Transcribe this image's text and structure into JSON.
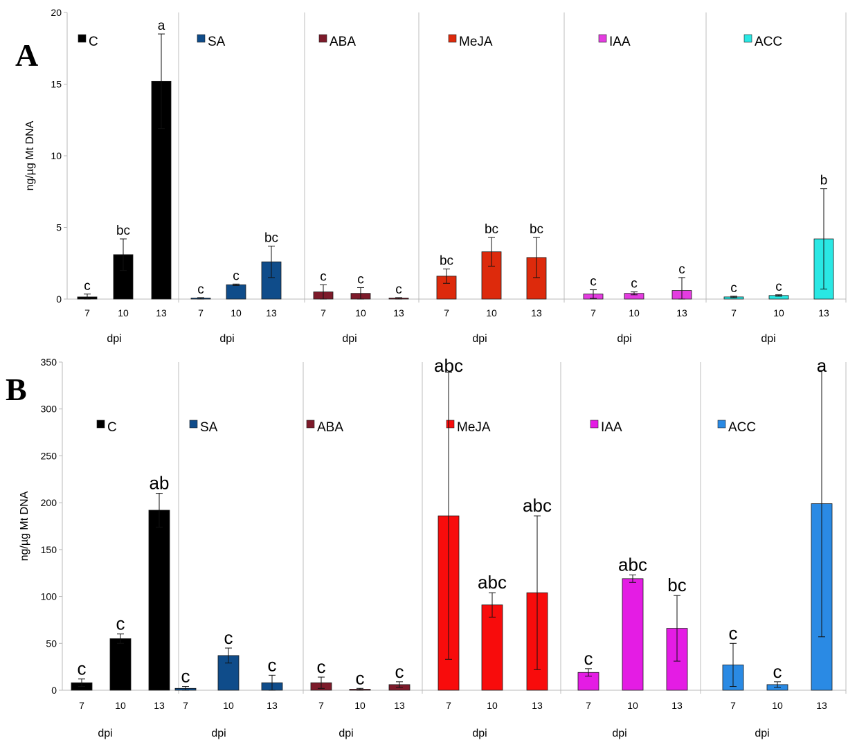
{
  "panels": [
    {
      "letter": "A",
      "ylabel": "ng/µg Mt DNA",
      "xlabel": "dpi",
      "ylim": [
        0,
        20
      ],
      "yticks": [
        "0",
        "5",
        "10",
        "15",
        "20"
      ],
      "categories": [
        "7",
        "10",
        "13"
      ],
      "subplots": [
        {
          "name": "C",
          "color": "#000000",
          "values": [
            0.15,
            3.1,
            15.2
          ],
          "errors": [
            0.2,
            1.1,
            3.3
          ],
          "labels": [
            "c",
            "bc",
            "a"
          ]
        },
        {
          "name": "SA",
          "color": "#0f4c8a",
          "values": [
            0.05,
            1.0,
            2.6
          ],
          "errors": [
            0.05,
            0.05,
            1.1
          ],
          "labels": [
            "c",
            "c",
            "bc"
          ]
        },
        {
          "name": "ABA",
          "color": "#7d1a2a",
          "values": [
            0.5,
            0.4,
            0.05
          ],
          "errors": [
            0.5,
            0.4,
            0.05
          ],
          "labels": [
            "c",
            "c",
            "c"
          ]
        },
        {
          "name": "MeJA",
          "color": "#dd2a0c",
          "values": [
            1.6,
            3.3,
            2.9
          ],
          "errors": [
            0.5,
            1.0,
            1.4
          ],
          "labels": [
            "bc",
            "bc",
            "bc"
          ]
        },
        {
          "name": "IAA",
          "color": "#e43ce0",
          "values": [
            0.35,
            0.4,
            0.6
          ],
          "errors": [
            0.3,
            0.1,
            0.9
          ],
          "labels": [
            "c",
            "c",
            "c"
          ]
        },
        {
          "name": "ACC",
          "color": "#2ae8e4",
          "values": [
            0.15,
            0.25,
            4.2
          ],
          "errors": [
            0.05,
            0.05,
            3.5
          ],
          "labels": [
            "c",
            "c",
            "b"
          ]
        }
      ]
    },
    {
      "letter": "B",
      "ylabel": "ng/µg Mt DNA",
      "xlabel": "dpi",
      "ylim": [
        0,
        350
      ],
      "yticks": [
        "0",
        "50",
        "100",
        "150",
        "200",
        "250",
        "300",
        "350"
      ],
      "categories": [
        "7",
        "10",
        "13"
      ],
      "subplots": [
        {
          "name": "C",
          "color": "#000000",
          "values": [
            8,
            55,
            192
          ],
          "errors": [
            4,
            5,
            18
          ],
          "labels": [
            "c",
            "c",
            "ab"
          ]
        },
        {
          "name": "SA",
          "color": "#0f4c8a",
          "values": [
            2,
            37,
            8
          ],
          "errors": [
            2,
            8,
            8
          ],
          "labels": [
            "c",
            "c",
            "c"
          ]
        },
        {
          "name": "ABA",
          "color": "#7d1a2a",
          "values": [
            8,
            1,
            6
          ],
          "errors": [
            6,
            1,
            3
          ],
          "labels": [
            "c",
            "c",
            "c"
          ]
        },
        {
          "name": "MeJA",
          "color": "#f80c0c",
          "values": [
            186,
            91,
            104
          ],
          "errors": [
            153,
            13,
            82
          ],
          "labels": [
            "abc",
            "abc",
            "abc"
          ]
        },
        {
          "name": "IAA",
          "color": "#e41ce4",
          "values": [
            19,
            119,
            66
          ],
          "errors": [
            4,
            4,
            35
          ],
          "labels": [
            "c",
            "abc",
            "bc"
          ]
        },
        {
          "name": "ACC",
          "color": "#2a8ae4",
          "values": [
            27,
            6,
            199
          ],
          "errors": [
            23,
            3,
            142
          ],
          "labels": [
            "c",
            "c",
            "a"
          ]
        }
      ]
    }
  ],
  "chart_data": [
    {
      "type": "bar",
      "title": "A",
      "xlabel": "dpi",
      "ylabel": "ng/µg Mt DNA",
      "ylim": [
        0,
        20
      ],
      "categories": [
        "7",
        "10",
        "13"
      ],
      "series": [
        {
          "name": "C",
          "values": [
            0.15,
            3.1,
            15.2
          ]
        },
        {
          "name": "SA",
          "values": [
            0.05,
            1.0,
            2.6
          ]
        },
        {
          "name": "ABA",
          "values": [
            0.5,
            0.4,
            0.05
          ]
        },
        {
          "name": "MeJA",
          "values": [
            1.6,
            3.3,
            2.9
          ]
        },
        {
          "name": "IAA",
          "values": [
            0.35,
            0.4,
            0.6
          ]
        },
        {
          "name": "ACC",
          "values": [
            0.15,
            0.25,
            4.2
          ]
        }
      ]
    },
    {
      "type": "bar",
      "title": "B",
      "xlabel": "dpi",
      "ylabel": "ng/µg Mt DNA",
      "ylim": [
        0,
        350
      ],
      "categories": [
        "7",
        "10",
        "13"
      ],
      "series": [
        {
          "name": "C",
          "values": [
            8,
            55,
            192
          ]
        },
        {
          "name": "SA",
          "values": [
            2,
            37,
            8
          ]
        },
        {
          "name": "ABA",
          "values": [
            8,
            1,
            6
          ]
        },
        {
          "name": "MeJA",
          "values": [
            186,
            91,
            104
          ]
        },
        {
          "name": "IAA",
          "values": [
            19,
            119,
            66
          ]
        },
        {
          "name": "ACC",
          "values": [
            27,
            6,
            199
          ]
        }
      ]
    }
  ]
}
